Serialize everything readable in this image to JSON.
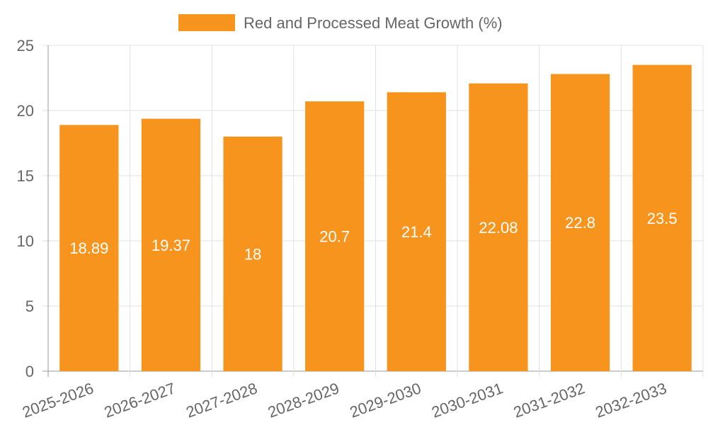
{
  "chart_data": {
    "type": "bar",
    "categories": [
      "2025-2026",
      "2026-2027",
      "2027-2028",
      "2028-2029",
      "2029-2030",
      "2030-2031",
      "2031-2032",
      "2032-2033"
    ],
    "series": [
      {
        "name": "Red and Processed Meat Growth (%)",
        "values": [
          18.89,
          19.37,
          18,
          20.7,
          21.4,
          22.08,
          22.8,
          23.5
        ],
        "color": "#f7941d"
      }
    ],
    "data_labels": [
      "18.89",
      "19.37",
      "18",
      "20.7",
      "21.4",
      "22.08",
      "22.8",
      "23.5"
    ],
    "title": "",
    "xlabel": "",
    "ylabel": "",
    "ylim": [
      0,
      25
    ],
    "yticks": [
      "0",
      "5",
      "10",
      "15",
      "20",
      "25"
    ],
    "grid": true,
    "legend_position": "top-center"
  }
}
